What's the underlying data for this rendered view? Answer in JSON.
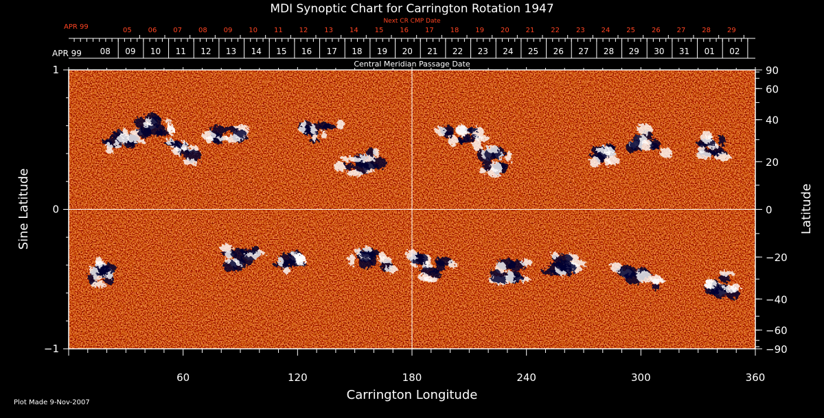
{
  "chart_data": {
    "type": "heatmap",
    "title": "MDI Synoptic Chart for Carrington Rotation 1947",
    "xlabel": "Carrington Longitude",
    "ylabel_left": "Sine Latitude",
    "ylabel_right": "Latitude",
    "xlim": [
      0,
      360
    ],
    "ylim": [
      -1,
      1
    ],
    "x_ticks_labeled": [
      60,
      120,
      180,
      240,
      300,
      360
    ],
    "x_minor_step": 10,
    "y_left_ticks": [
      {
        "value": -1,
        "label": "−1"
      },
      {
        "value": 0,
        "label": "0"
      },
      {
        "value": 1,
        "label": "1"
      }
    ],
    "y_right_ticks": [
      {
        "deg": 90,
        "label": "90"
      },
      {
        "deg": 60,
        "label": "60"
      },
      {
        "deg": 40,
        "label": "40"
      },
      {
        "deg": 20,
        "label": "20"
      },
      {
        "deg": 0,
        "label": "0"
      },
      {
        "deg": -20,
        "label": "−20"
      },
      {
        "deg": -40,
        "label": "−40"
      },
      {
        "deg": -60,
        "label": "−60"
      },
      {
        "deg": -90,
        "label": "−90"
      }
    ],
    "y_right_minor_step_deg": 10,
    "central_meridian_axis": {
      "title": "Central Meridian Passage Date",
      "month_label": "APR 99",
      "labels": [
        "02",
        "01",
        "31",
        "30",
        "29",
        "28",
        "27",
        "26",
        "25",
        "24",
        "23",
        "22",
        "21",
        "20",
        "19",
        "18",
        "17",
        "16",
        "15",
        "14",
        "13",
        "12",
        "11",
        "10",
        "09",
        "08"
      ],
      "first_label_longitude": 356,
      "step_longitude": 13.2
    },
    "next_cr_axis": {
      "title": "Next CR CMP Date",
      "month_label": "APR 99",
      "labels": [
        "29",
        "28",
        "27",
        "26",
        "25",
        "24",
        "23",
        "22",
        "21",
        "20",
        "19",
        "18",
        "17",
        "16",
        "15",
        "14",
        "13",
        "12",
        "11",
        "10",
        "09",
        "08",
        "07",
        "06",
        "05"
      ],
      "first_label_longitude": 354,
      "step_longitude": 13.2
    },
    "grid_lines": {
      "longitude": 180,
      "sine_latitude": 0
    },
    "colormap": [
      "#000030",
      "#ff2200",
      "#ff6a10",
      "#ffffff"
    ],
    "background_color": "#ff5a10",
    "footer": "Plot Made  9-Nov-2007"
  },
  "colors": {
    "background": "#000000",
    "axes": "#ffffff",
    "accent": "#ff4422"
  }
}
